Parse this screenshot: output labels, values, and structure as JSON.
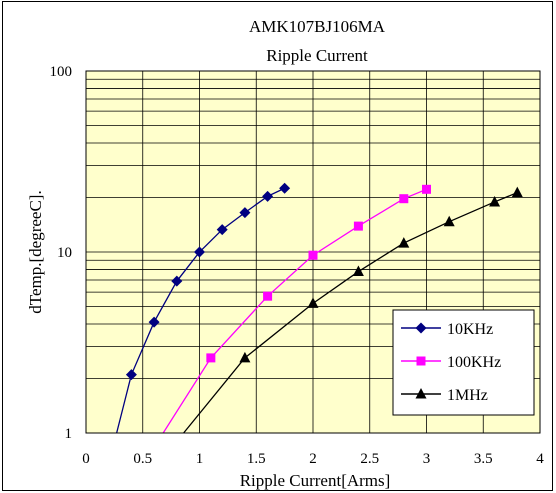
{
  "chart_data": {
    "type": "line",
    "title": "AMK107BJ106MA",
    "subtitle": "Ripple Current",
    "xlabel": "Ripple Current[Arms]",
    "ylabel": "dTemp.[degreeC].",
    "xlim": [
      0,
      4
    ],
    "ylim": [
      1,
      100
    ],
    "yscale": "log",
    "x_ticks": [
      "0",
      "0.5",
      "1",
      "1.5",
      "2",
      "2.5",
      "3",
      "3.5",
      "4"
    ],
    "y_ticks": [
      "1",
      "10",
      "100"
    ],
    "grid": true,
    "plot_background": "#ffffcc",
    "legend_position": "bottom-right",
    "series": [
      {
        "name": "10KHz",
        "color": "#000080",
        "marker": "diamond",
        "line_start": {
          "x": 0.27,
          "y": 1.0
        },
        "x": [
          0.4,
          0.6,
          0.8,
          1.0,
          1.2,
          1.4,
          1.6,
          1.75
        ],
        "y": [
          2.1,
          4.1,
          6.9,
          10.0,
          13.3,
          16.5,
          20.3,
          22.5
        ]
      },
      {
        "name": "100KHz",
        "color": "#ff00ff",
        "marker": "square",
        "line_start": {
          "x": 0.68,
          "y": 1.0
        },
        "x": [
          1.1,
          1.6,
          2.0,
          2.4,
          2.8,
          3.0
        ],
        "y": [
          2.6,
          5.7,
          9.6,
          13.9,
          19.7,
          22.2
        ]
      },
      {
        "name": "1MHz",
        "color": "#000000",
        "marker": "triangle",
        "line_start": {
          "x": 0.86,
          "y": 1.0
        },
        "x": [
          1.4,
          2.0,
          2.4,
          2.8,
          3.2,
          3.6,
          3.8
        ],
        "y": [
          2.6,
          5.2,
          7.8,
          11.2,
          14.7,
          18.9,
          21.3
        ]
      }
    ]
  }
}
